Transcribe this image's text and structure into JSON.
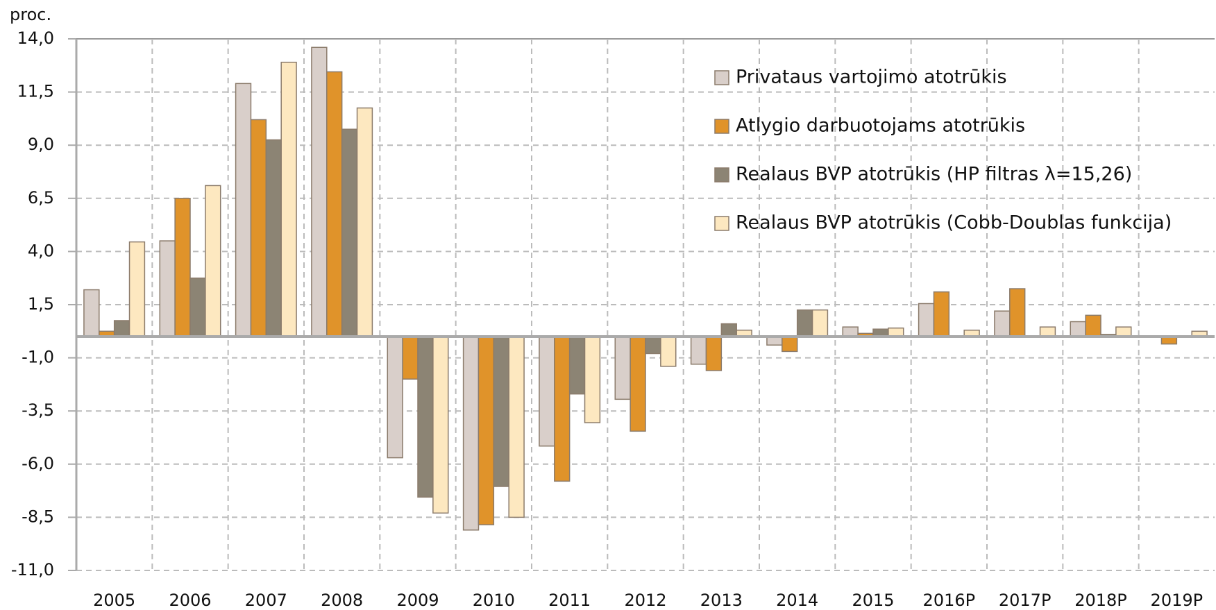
{
  "chart_data": {
    "type": "bar",
    "y_unit_label": "proc.",
    "categories": [
      "2005",
      "2006",
      "2007",
      "2008",
      "2009",
      "2010",
      "2011",
      "2012",
      "2013",
      "2014",
      "2015",
      "2016P",
      "2017P",
      "2018P",
      "2019P"
    ],
    "series": [
      {
        "name": "Privataus vartojimo atotrūkis",
        "color": "#d9cfca",
        "values": [
          2.2,
          4.5,
          11.9,
          13.6,
          -5.7,
          -9.1,
          -5.15,
          -2.95,
          -1.3,
          -0.4,
          0.45,
          1.55,
          1.2,
          0.7,
          0
        ]
      },
      {
        "name": "Atlygio darbuotojams atotrūkis",
        "color": "#e0932a",
        "values": [
          0.25,
          6.5,
          10.2,
          12.45,
          -2.0,
          -8.85,
          -6.8,
          -4.45,
          -1.6,
          -0.7,
          0.15,
          2.1,
          2.25,
          1.0,
          -0.35
        ]
      },
      {
        "name": "Realaus BVP atotrūkis (HP filtras λ=15,26)",
        "color": "#8c8474",
        "values": [
          0.75,
          2.75,
          9.25,
          9.75,
          -7.55,
          -7.05,
          -2.7,
          -0.8,
          0.6,
          1.25,
          0.35,
          0,
          0,
          0.1,
          0
        ]
      },
      {
        "name": "Realaus BVP atotrūkis (Cobb-Doublas funkcija)",
        "color": "#fde8c0",
        "values": [
          4.45,
          7.1,
          12.9,
          10.75,
          -8.3,
          -8.5,
          -4.05,
          -1.4,
          0.3,
          1.25,
          0.4,
          0.3,
          0.45,
          0.45,
          0.25
        ]
      }
    ],
    "ylim": [
      -11,
      14
    ],
    "yticks": [
      {
        "value": -11,
        "label": "-11,0"
      },
      {
        "value": -8.5,
        "label": "-8,5"
      },
      {
        "value": -6,
        "label": "-6,0"
      },
      {
        "value": -3.5,
        "label": "-3,5"
      },
      {
        "value": -1,
        "label": "-1,0"
      },
      {
        "value": 1.5,
        "label": "1,5"
      },
      {
        "value": 4,
        "label": "4,0"
      },
      {
        "value": 6.5,
        "label": "6,5"
      },
      {
        "value": 9,
        "label": "9,0"
      },
      {
        "value": 11.5,
        "label": "11,5"
      },
      {
        "value": 14,
        "label": "14,0"
      }
    ],
    "grid": true,
    "legend": "top-right"
  }
}
